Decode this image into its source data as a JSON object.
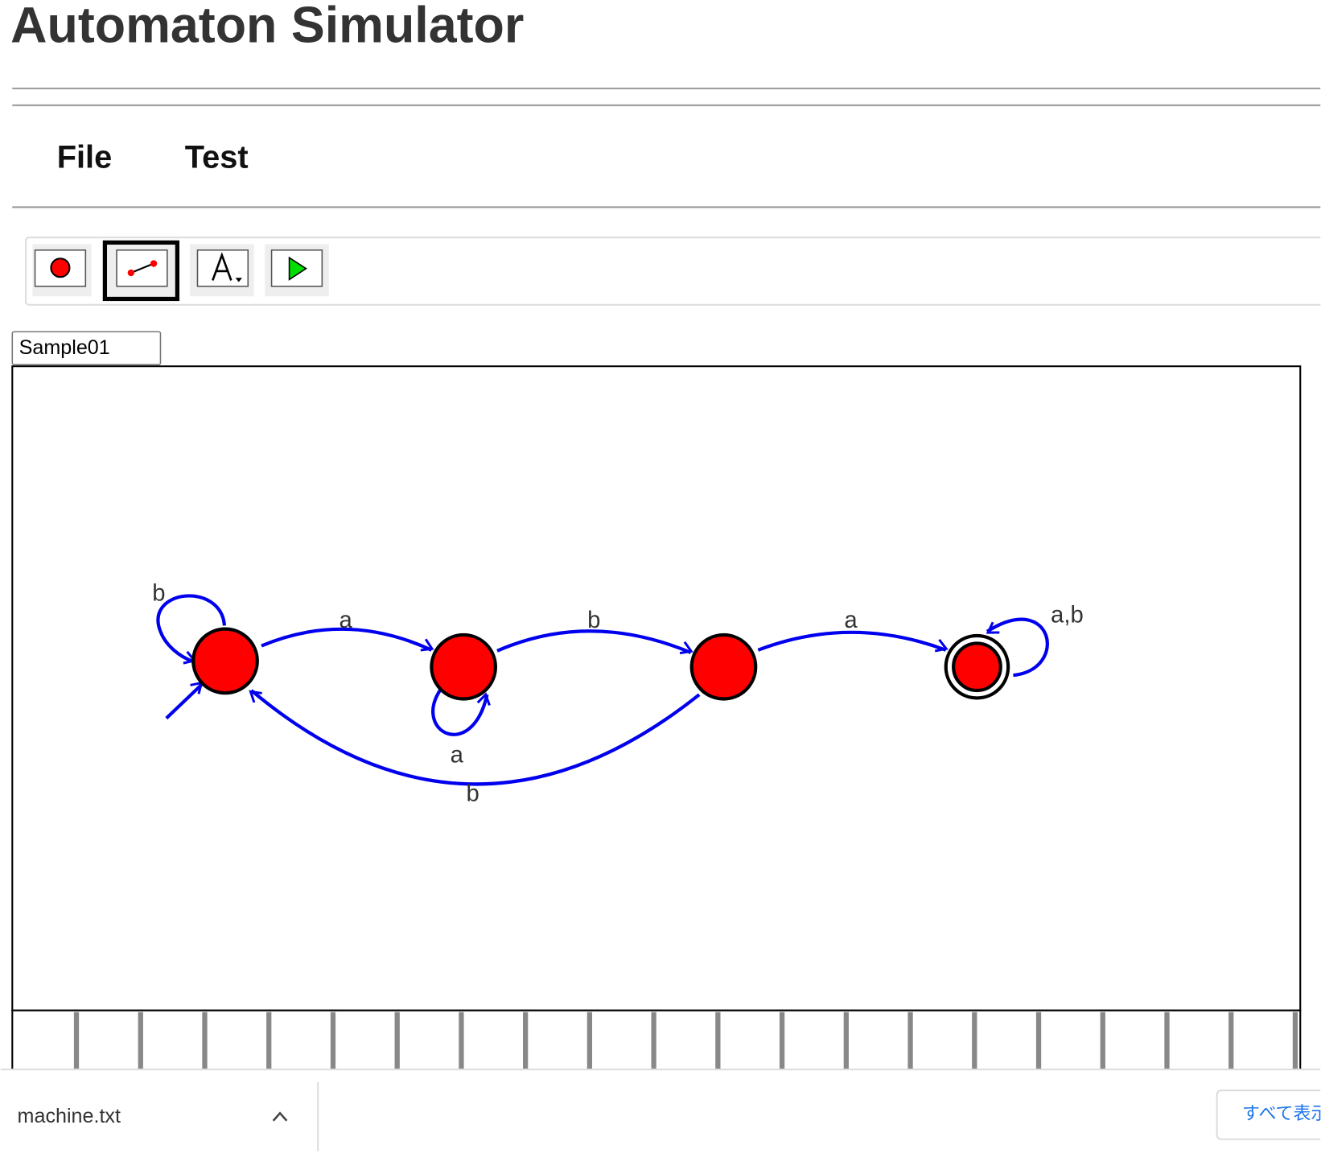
{
  "header": {
    "title": "Automaton Simulator"
  },
  "menu": [
    "File",
    "Test"
  ],
  "machine_name": "Sample01",
  "diagram": {
    "edge_labels": [
      "b",
      "a",
      "b",
      "a",
      "a,b",
      "a",
      "b"
    ]
  },
  "download_bar": {
    "file": "machine.txt",
    "show_all": "すべて表示"
  }
}
